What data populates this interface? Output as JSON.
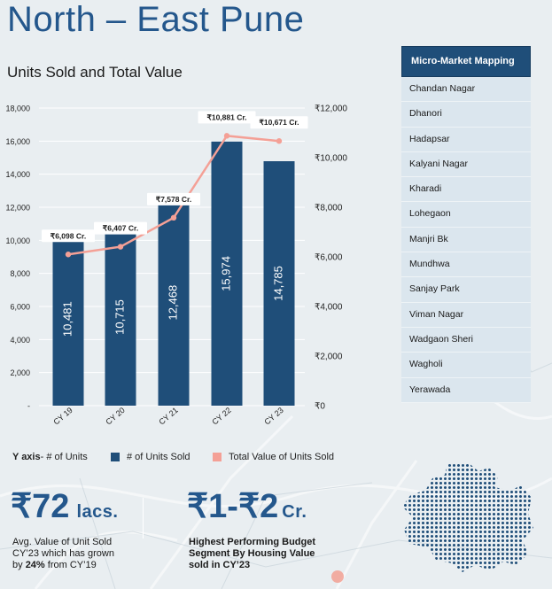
{
  "title": "North – East Pune",
  "chart_title": "Units Sold and Total Value",
  "chart_data": {
    "type": "bar",
    "categories": [
      "CY 19",
      "CY 20",
      "CY 21",
      "CY 22",
      "CY 23"
    ],
    "series": [
      {
        "name": "# of Units Sold",
        "type": "bar",
        "axis": "left",
        "values": [
          10481,
          10715,
          12468,
          15974,
          14785
        ],
        "labels": [
          "10,481",
          "10,715",
          "12,468",
          "15,974",
          "14,785"
        ],
        "color": "#1f4e79"
      },
      {
        "name": "Total Value of Units Sold",
        "type": "line",
        "axis": "right",
        "values": [
          6098,
          6407,
          7578,
          10881,
          10671
        ],
        "labels": [
          "₹6,098 Cr.",
          "₹6,407 Cr.",
          "₹7,578 Cr.",
          "₹10,881 Cr.",
          "₹10,671 Cr."
        ],
        "color": "#f4a096"
      }
    ],
    "y_left": {
      "min": 0,
      "max": 18000,
      "ticks": [
        "-",
        "2,000",
        "4,000",
        "6,000",
        "8,000",
        "10,000",
        "12,000",
        "14,000",
        "16,000",
        "18,000"
      ]
    },
    "y_right": {
      "min": 0,
      "max": 12000,
      "ticks": [
        "₹0",
        "₹2,000",
        "₹4,000",
        "₹6,000",
        "₹8,000",
        "₹10,000",
        "₹12,000"
      ]
    },
    "grid": true,
    "legend_position": "bottom"
  },
  "legend": {
    "yaxis_bold": "Y axis",
    "yaxis_rest": " - # of Units",
    "units": "# of Units Sold",
    "value": "Total Value of Units Sold"
  },
  "micro_market": {
    "header": "Micro-Market Mapping",
    "items": [
      "Chandan Nagar",
      "Dhanori",
      "Hadapsar",
      "Kalyani Nagar",
      "Kharadi",
      "Lohegaon",
      "Manjri Bk",
      "Mundhwa",
      "Sanjay Park",
      "Viman Nagar",
      "Wadgaon Sheri",
      "Wagholi",
      "Yerawada"
    ]
  },
  "stats": {
    "avg_value": "₹72",
    "avg_unit": "lacs.",
    "avg_desc_1": "Avg. Value of Unit Sold",
    "avg_desc_2": "CY’23 which has grown",
    "avg_desc_3_pre": "by ",
    "avg_desc_3_bold": "24%",
    "avg_desc_3_post": " from CY’19",
    "budget_value": "₹1-₹2",
    "budget_unit": "Cr.",
    "budget_desc_1": "Highest Performing Budget",
    "budget_desc_2": "Segment By Housing Value",
    "budget_desc_3": "sold in CY’23"
  },
  "colors": {
    "title": "#24578c",
    "bar": "#1f4e79",
    "line": "#f4a096",
    "panel_header": "#1f4e79"
  }
}
